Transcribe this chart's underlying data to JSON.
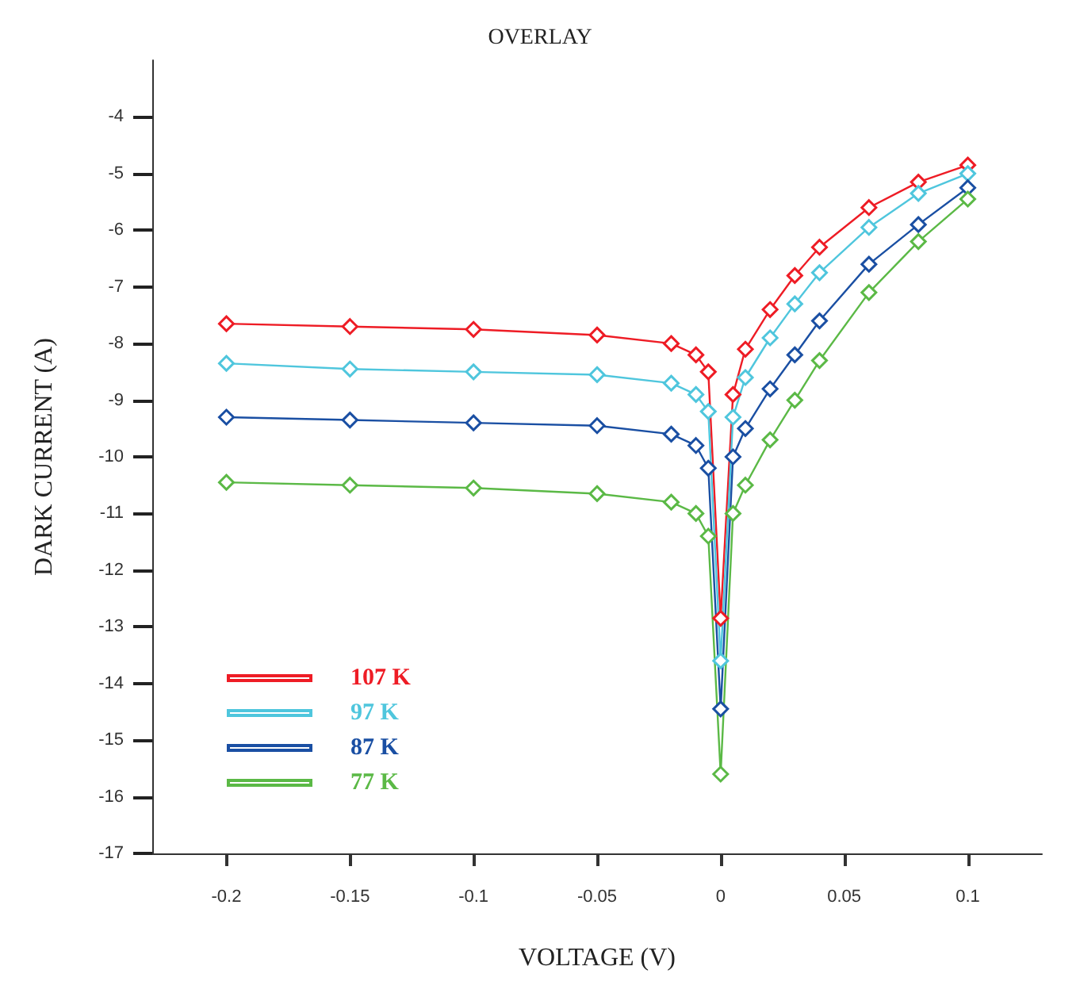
{
  "chart_data": {
    "type": "line",
    "title": "OVERLAY",
    "xlabel": "VOLTAGE (V)",
    "ylabel": "DARK CURRENT (A)",
    "x": [
      -0.2,
      -0.15,
      -0.1,
      -0.05,
      -0.02,
      -0.01,
      -0.005,
      0,
      0.005,
      0.01,
      0.02,
      0.03,
      0.04,
      0.06,
      0.08,
      0.1
    ],
    "series": [
      {
        "name": "107 K",
        "color": "#ee1c25",
        "values": [
          -7.65,
          -7.7,
          -7.75,
          -7.85,
          -8.0,
          -8.2,
          -8.5,
          -12.85,
          -8.9,
          -8.1,
          -7.4,
          -6.8,
          -6.3,
          -5.6,
          -5.15,
          -4.85
        ]
      },
      {
        "name": "97 K",
        "color": "#4fc6dd",
        "values": [
          -8.35,
          -8.45,
          -8.5,
          -8.55,
          -8.7,
          -8.9,
          -9.2,
          -13.6,
          -9.3,
          -8.6,
          -7.9,
          -7.3,
          -6.75,
          -5.95,
          -5.35,
          -5.0
        ]
      },
      {
        "name": "87 K",
        "color": "#1a4fa3",
        "values": [
          -9.3,
          -9.35,
          -9.4,
          -9.45,
          -9.6,
          -9.8,
          -10.2,
          -14.45,
          -10.0,
          -9.5,
          -8.8,
          -8.2,
          -7.6,
          -6.6,
          -5.9,
          -5.25
        ]
      },
      {
        "name": "77 K",
        "color": "#5bb946",
        "values": [
          -10.45,
          -10.5,
          -10.55,
          -10.65,
          -10.8,
          -11.0,
          -11.4,
          -15.6,
          -11.0,
          -10.5,
          -9.7,
          -9.0,
          -8.3,
          -7.1,
          -6.2,
          -5.45
        ]
      }
    ],
    "xlim": [
      -0.23,
      0.13
    ],
    "xticks": [
      -0.2,
      -0.15,
      -0.1,
      -0.05,
      0,
      0.05,
      0.1
    ],
    "ylim": [
      -17,
      -3
    ],
    "yticks": [
      -17,
      -16,
      -15,
      -14,
      -13,
      -12,
      -11,
      -10,
      -9,
      -8,
      -7,
      -6,
      -5,
      -4
    ],
    "grid": false,
    "legend": "bottom left",
    "marker": "diamond",
    "line_style": "solid"
  }
}
